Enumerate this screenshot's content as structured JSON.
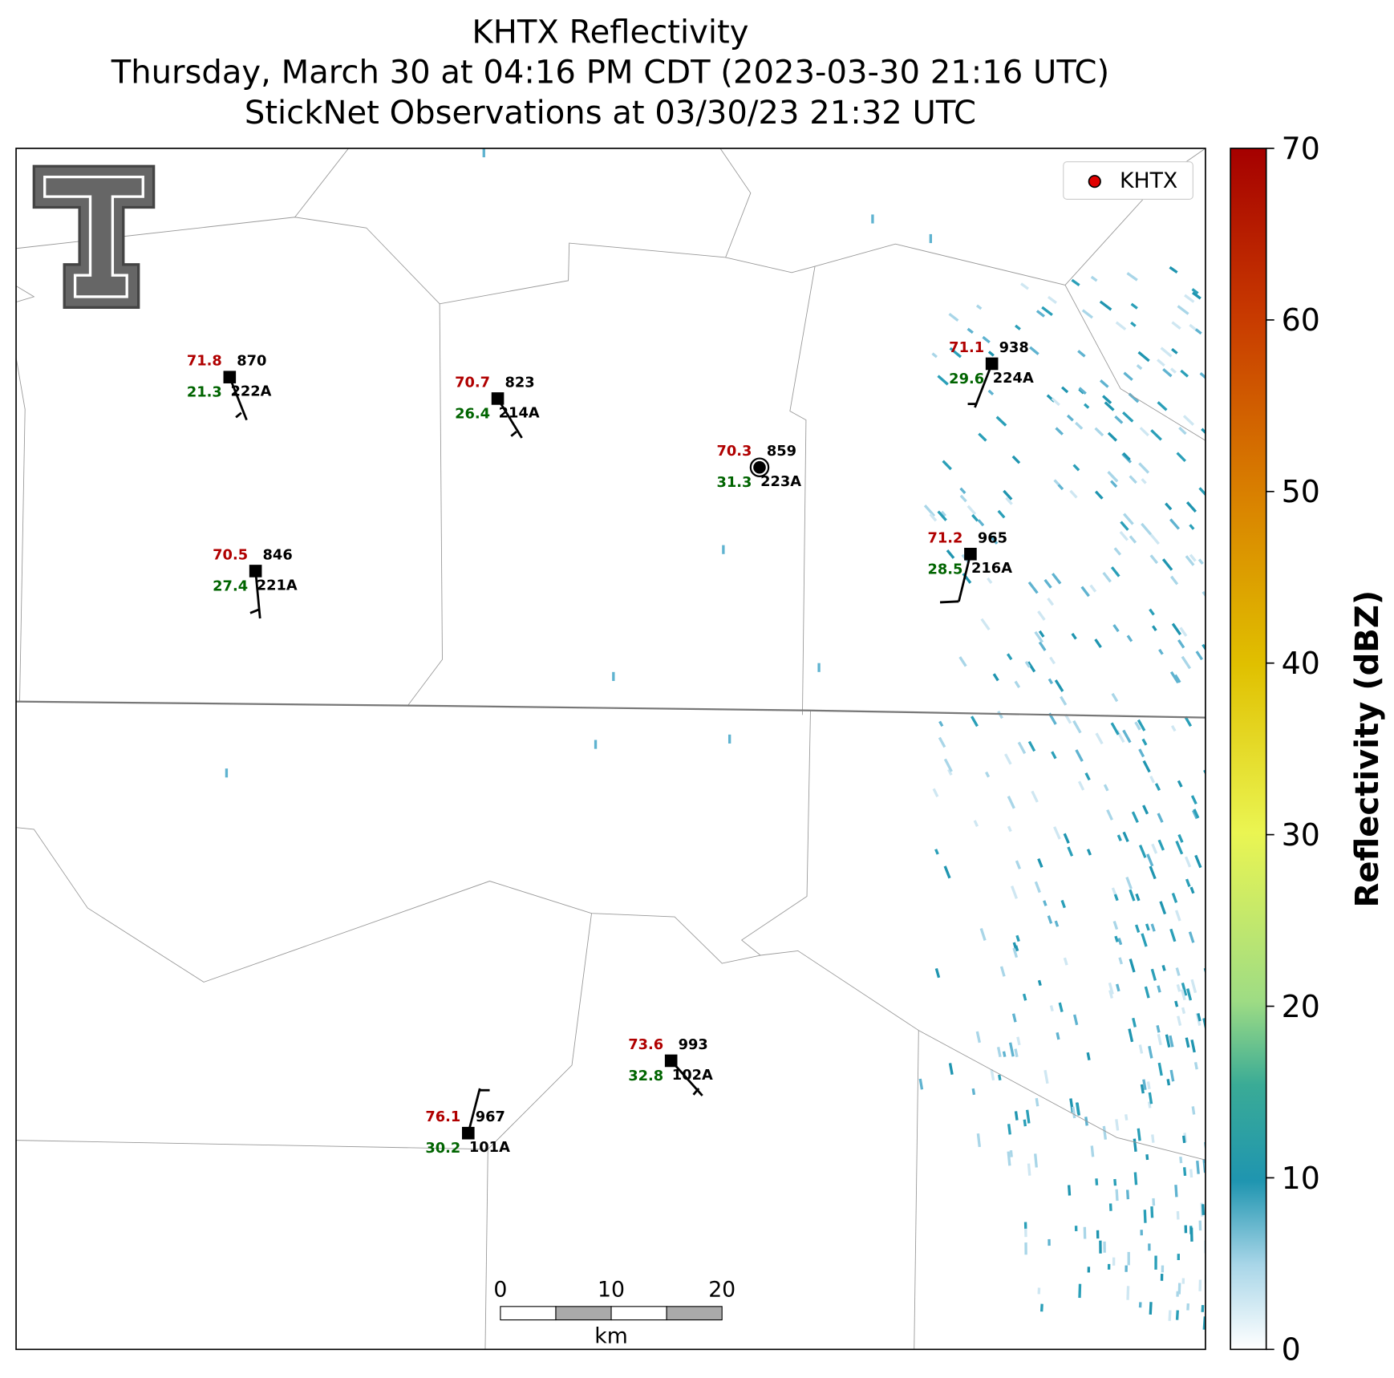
{
  "title": [
    "KHTX Reflectivity",
    "Thursday, March 30 at 04:16 PM CDT (2023-03-30 21:16 UTC)",
    "StickNet Observations at 03/30/23 21:32 UTC"
  ],
  "legend": {
    "label": "KHTX"
  },
  "stations": [
    {
      "id": "222A",
      "temperature": "71.8",
      "dewpoint": "21.3",
      "pressure": "870"
    },
    {
      "id": "214A",
      "temperature": "70.7",
      "dewpoint": "26.4",
      "pressure": "823"
    },
    {
      "id": "223A",
      "temperature": "70.3",
      "dewpoint": "31.3",
      "pressure": "859"
    },
    {
      "id": "221A",
      "temperature": "70.5",
      "dewpoint": "27.4",
      "pressure": "846"
    },
    {
      "id": "224A",
      "temperature": "71.1",
      "dewpoint": "29.6",
      "pressure": "938"
    },
    {
      "id": "216A",
      "temperature": "71.2",
      "dewpoint": "28.5",
      "pressure": "965"
    },
    {
      "id": "102A",
      "temperature": "73.6",
      "dewpoint": "32.8",
      "pressure": "993"
    },
    {
      "id": "101A",
      "temperature": "76.1",
      "dewpoint": "30.2",
      "pressure": "967"
    }
  ],
  "colorbar": {
    "label": "Reflectivity (dBZ)",
    "lim": [
      0,
      70
    ],
    "ticks": [
      0,
      10,
      20,
      30,
      40,
      50,
      60,
      70
    ]
  },
  "scale_bar": {
    "ticks": [
      0,
      10,
      20
    ],
    "unit": "km"
  }
}
